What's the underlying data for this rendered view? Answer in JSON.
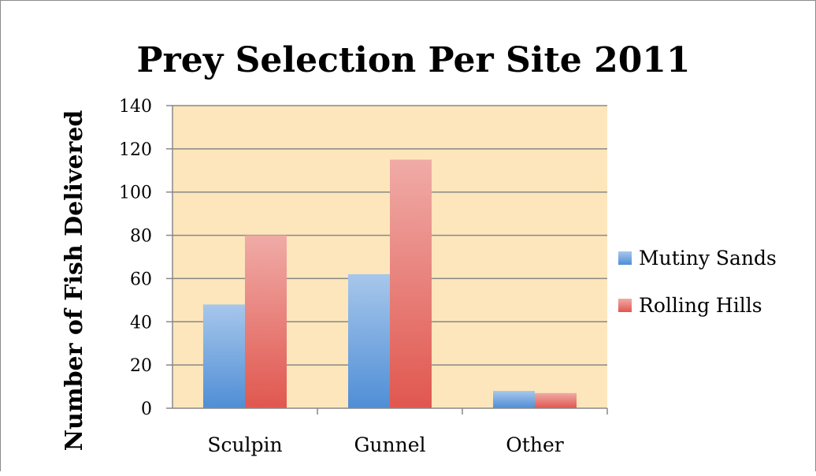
{
  "chart_data": {
    "type": "bar",
    "title": "Prey Selection Per Site 2011",
    "ylabel": "Number of Fish Delivered",
    "xlabel": "",
    "categories": [
      "Sculpin",
      "Gunnel",
      "Other"
    ],
    "series": [
      {
        "name": "Mutiny Sands",
        "values": [
          48,
          62,
          8
        ],
        "color": "#4f8ed6"
      },
      {
        "name": "Rolling Hills",
        "values": [
          80,
          115,
          7
        ],
        "color": "#e0574f"
      }
    ],
    "ylim": [
      0,
      140
    ],
    "yticks": [
      0,
      20,
      40,
      60,
      80,
      100,
      120,
      140
    ],
    "plot_background": "#fde6bb",
    "grid": true,
    "legend_position": "right"
  }
}
